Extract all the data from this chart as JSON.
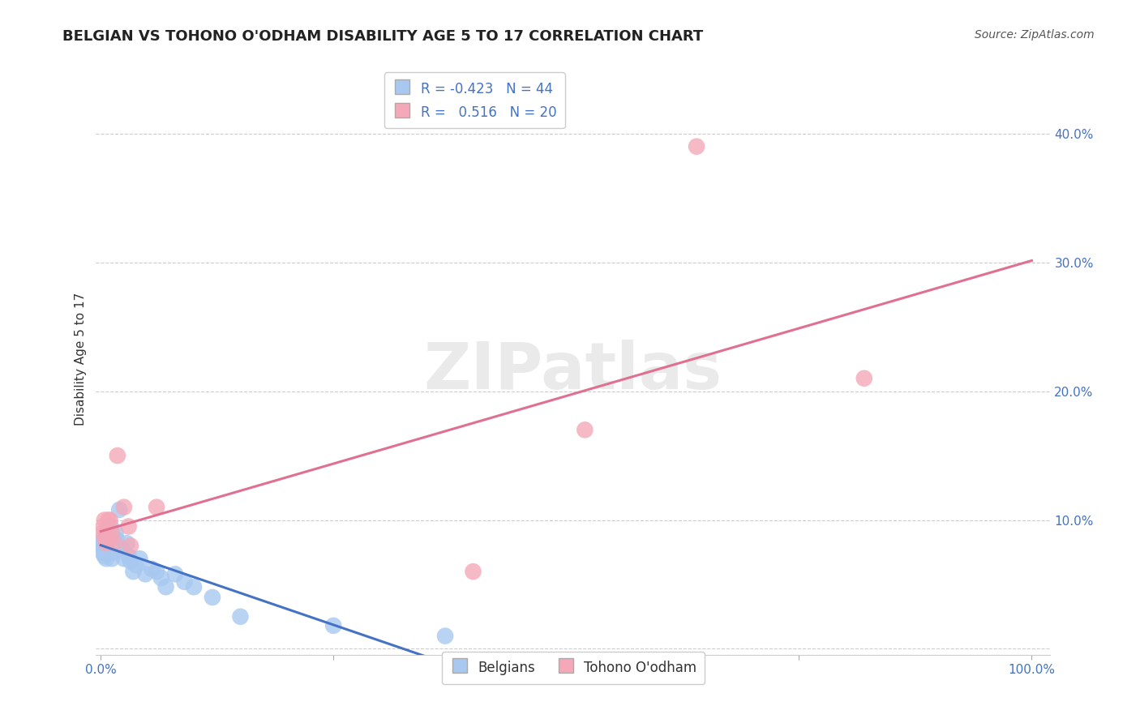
{
  "title": "BELGIAN VS TOHONO O'ODHAM DISABILITY AGE 5 TO 17 CORRELATION CHART",
  "source": "Source: ZipAtlas.com",
  "ylabel_label": "Disability Age 5 to 17",
  "xlim": [
    -0.005,
    1.02
  ],
  "ylim": [
    -0.005,
    0.455
  ],
  "x_ticks": [
    0.0,
    0.25,
    0.5,
    0.75,
    1.0
  ],
  "x_tick_labels": [
    "0.0%",
    "",
    "",
    "",
    "100.0%"
  ],
  "y_ticks": [
    0.0,
    0.1,
    0.2,
    0.3,
    0.4
  ],
  "y_tick_labels": [
    "",
    "10.0%",
    "20.0%",
    "30.0%",
    "40.0%"
  ],
  "grid_color": "#cccccc",
  "background_color": "#ffffff",
  "belgian_color": "#A8C8F0",
  "tohono_color": "#F4A8B8",
  "belgian_line_color": "#4472C4",
  "tohono_line_color": "#E07090",
  "R_belgian": -0.423,
  "N_belgian": 44,
  "R_tohono": 0.516,
  "N_tohono": 20,
  "legend_label_belgian": "Belgians",
  "legend_label_tohono": "Tohono O'odham",
  "title_fontsize": 13,
  "axis_label_fontsize": 11,
  "tick_fontsize": 11,
  "tick_color": "#4472C4",
  "belgian_x": [
    0.001,
    0.002,
    0.002,
    0.003,
    0.003,
    0.004,
    0.004,
    0.005,
    0.005,
    0.006,
    0.006,
    0.007,
    0.008,
    0.008,
    0.009,
    0.01,
    0.011,
    0.012,
    0.013,
    0.014,
    0.015,
    0.016,
    0.017,
    0.02,
    0.022,
    0.025,
    0.028,
    0.03,
    0.032,
    0.035,
    0.038,
    0.042,
    0.048,
    0.055,
    0.06,
    0.065,
    0.07,
    0.08,
    0.09,
    0.1,
    0.12,
    0.15,
    0.25,
    0.37
  ],
  "belgian_y": [
    0.082,
    0.075,
    0.08,
    0.078,
    0.085,
    0.072,
    0.088,
    0.076,
    0.083,
    0.07,
    0.09,
    0.075,
    0.08,
    0.085,
    0.078,
    0.082,
    0.095,
    0.07,
    0.085,
    0.075,
    0.082,
    0.09,
    0.085,
    0.108,
    0.078,
    0.07,
    0.082,
    0.072,
    0.068,
    0.06,
    0.065,
    0.07,
    0.058,
    0.062,
    0.06,
    0.055,
    0.048,
    0.058,
    0.052,
    0.048,
    0.04,
    0.025,
    0.018,
    0.01
  ],
  "tohono_x": [
    0.002,
    0.003,
    0.004,
    0.005,
    0.006,
    0.007,
    0.008,
    0.009,
    0.01,
    0.012,
    0.015,
    0.018,
    0.025,
    0.03,
    0.032,
    0.06,
    0.4,
    0.52,
    0.64,
    0.82
  ],
  "tohono_y": [
    0.09,
    0.095,
    0.1,
    0.085,
    0.082,
    0.092,
    0.1,
    0.085,
    0.1,
    0.09,
    0.082,
    0.15,
    0.11,
    0.095,
    0.08,
    0.11,
    0.06,
    0.17,
    0.39,
    0.21
  ]
}
